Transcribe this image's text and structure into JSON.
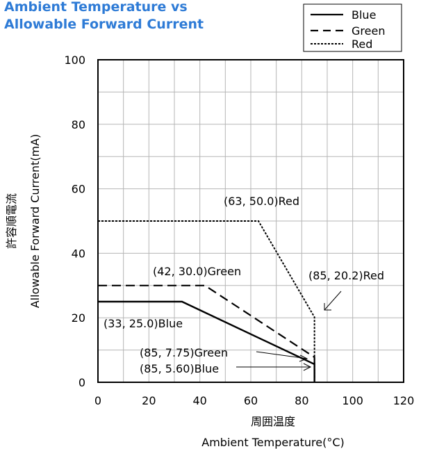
{
  "chart_data": {
    "type": "line",
    "title": "Ambient Temperature vs\nAllowable Forward Current",
    "title_lines": [
      "Ambient Temperature vs",
      "Allowable Forward Current"
    ],
    "title_color": "#2e7bd6",
    "xlabel_jp": "周囲温度",
    "xlabel": "Ambient Temperature(°C)",
    "ylabel_jp": "許容順電流",
    "ylabel": "Allowable Forward Current(mA)",
    "xlim": [
      0,
      120
    ],
    "ylim": [
      0,
      100
    ],
    "xticks": [
      0,
      20,
      40,
      60,
      80,
      100,
      120
    ],
    "yticks": [
      0,
      20,
      40,
      60,
      80,
      100
    ],
    "x_tick_labels": [
      "0",
      "20",
      "40",
      "60",
      "80",
      "100",
      "120"
    ],
    "y_tick_labels": [
      "0",
      "20",
      "40",
      "60",
      "80",
      "100"
    ],
    "grid": true,
    "legend_position": "top-right",
    "series": [
      {
        "name": "Blue",
        "style": "solid",
        "x": [
          0,
          33,
          85,
          85
        ],
        "y": [
          25.0,
          25.0,
          5.6,
          0
        ]
      },
      {
        "name": "Green",
        "style": "dashed",
        "x": [
          0,
          42,
          85,
          85
        ],
        "y": [
          30.0,
          30.0,
          7.75,
          0
        ]
      },
      {
        "name": "Red",
        "style": "dotted",
        "x": [
          0,
          63,
          85,
          85
        ],
        "y": [
          50.0,
          50.0,
          20.2,
          0
        ]
      }
    ],
    "annotations": [
      {
        "text": "(63, 50.0)Red"
      },
      {
        "text": "(42, 30.0)Green"
      },
      {
        "text": "(85, 20.2)Red"
      },
      {
        "text": "(33, 25.0)Blue"
      },
      {
        "text": "(85, 7.75)Green"
      },
      {
        "text": "(85, 5.60)Blue"
      }
    ]
  }
}
